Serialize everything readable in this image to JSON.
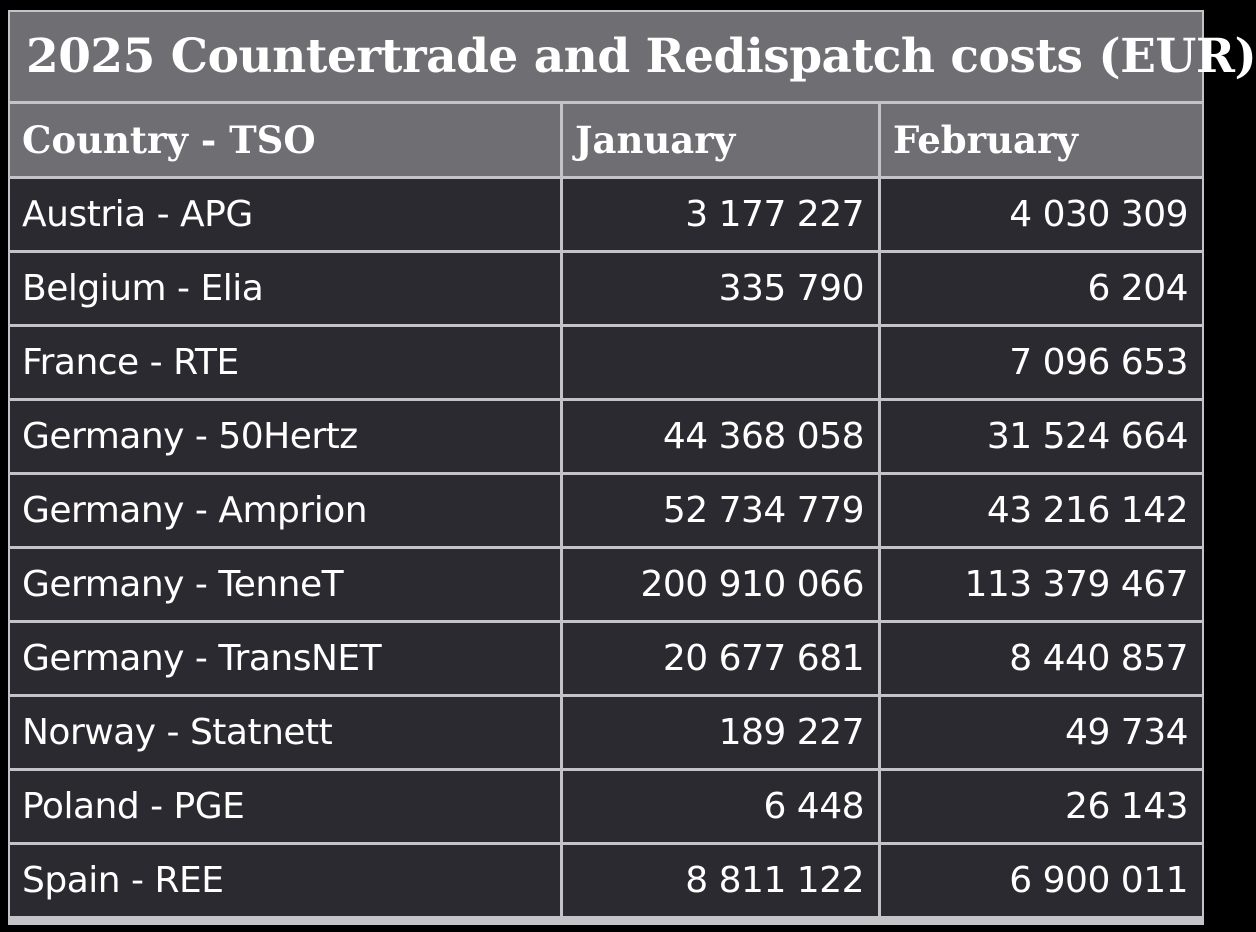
{
  "table": {
    "title": "2025 Countertrade and Redispatch costs (EUR)",
    "headers": [
      "Country - TSO",
      "January",
      "February"
    ],
    "rows": [
      {
        "country": "Austria - APG",
        "january": "3 177 227",
        "february": "4 030 309"
      },
      {
        "country": "Belgium - Elia",
        "january": "335 790",
        "february": "6 204"
      },
      {
        "country": "France - RTE",
        "january": "",
        "february": "7 096 653"
      },
      {
        "country": "Germany - 50Hertz",
        "january": "44 368 058",
        "february": "31 524 664"
      },
      {
        "country": "Germany - Amprion",
        "january": "52 734 779",
        "february": "43 216 142"
      },
      {
        "country": "Germany - TenneT",
        "january": "200 910 066",
        "february": "113 379 467"
      },
      {
        "country": "Germany - TransNET",
        "january": "20 677 681",
        "february": "8 440 857"
      },
      {
        "country": "Norway - Statnett",
        "january": "189 227",
        "february": "49 734"
      },
      {
        "country": "Poland - PGE",
        "january": "6 448",
        "february": "26 143"
      },
      {
        "country": "Spain - REE",
        "january": "8 811 122",
        "february": "6 900 011"
      }
    ]
  },
  "colors": {
    "header_bg": "#6f6e72",
    "body_bg": "#2a2a30",
    "grid": "#c4c3c7",
    "text": "#ffffff"
  }
}
